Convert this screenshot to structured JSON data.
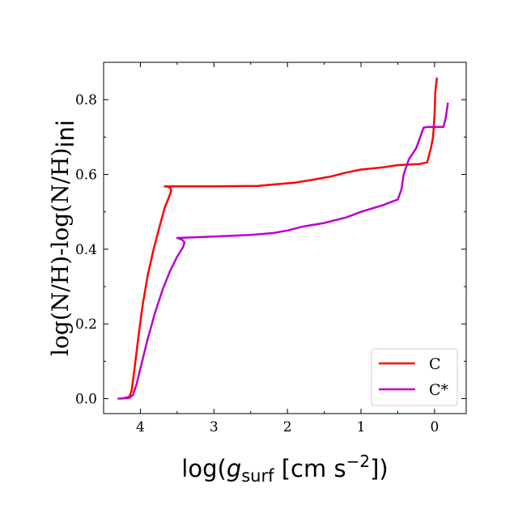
{
  "chart_data": {
    "type": "line",
    "xlabel": {
      "prefix": "log(",
      "symbol": "g",
      "subscript": "surf",
      "unit": " [cm s",
      "exponent": "−2",
      "suffix": "])"
    },
    "ylabel": {
      "main": "log(N/H)-log(N/H)",
      "subscript": "ini"
    },
    "xlim": [
      4.5,
      -0.43
    ],
    "ylim": [
      -0.04,
      0.9
    ],
    "x_inverted": true,
    "xticks": [
      4,
      3,
      2,
      1,
      0
    ],
    "xtick_labels": [
      "4",
      "3",
      "2",
      "1",
      "0"
    ],
    "yticks": [
      0.0,
      0.2,
      0.4,
      0.6,
      0.8
    ],
    "ytick_labels": [
      "0.0",
      "0.2",
      "0.4",
      "0.6",
      "0.8"
    ],
    "grid": false,
    "legend_position": "bottom-right",
    "series": [
      {
        "name": "C",
        "color": "#ff0000",
        "points": [
          [
            4.25,
            0.0
          ],
          [
            4.15,
            0.005
          ],
          [
            4.12,
            0.02
          ],
          [
            4.08,
            0.08
          ],
          [
            4.03,
            0.16
          ],
          [
            3.97,
            0.25
          ],
          [
            3.9,
            0.33
          ],
          [
            3.82,
            0.4
          ],
          [
            3.74,
            0.46
          ],
          [
            3.67,
            0.51
          ],
          [
            3.61,
            0.54
          ],
          [
            3.58,
            0.556
          ],
          [
            3.59,
            0.563
          ],
          [
            3.62,
            0.567
          ],
          [
            3.67,
            0.568
          ],
          [
            3.0,
            0.568
          ],
          [
            2.4,
            0.569
          ],
          [
            2.2,
            0.573
          ],
          [
            1.9,
            0.578
          ],
          [
            1.65,
            0.586
          ],
          [
            1.4,
            0.595
          ],
          [
            1.2,
            0.605
          ],
          [
            1.0,
            0.613
          ],
          [
            0.7,
            0.619
          ],
          [
            0.5,
            0.625
          ],
          [
            0.2,
            0.628
          ],
          [
            0.1,
            0.632
          ],
          [
            0.05,
            0.67
          ],
          [
            0.02,
            0.7
          ],
          [
            0.0,
            0.76
          ],
          [
            -0.01,
            0.82
          ],
          [
            -0.03,
            0.857
          ]
        ]
      },
      {
        "name": "C*",
        "color": "#bb00cc",
        "points": [
          [
            4.3,
            0.0
          ],
          [
            4.15,
            0.002
          ],
          [
            4.1,
            0.01
          ],
          [
            4.05,
            0.04
          ],
          [
            4.0,
            0.08
          ],
          [
            3.9,
            0.16
          ],
          [
            3.8,
            0.23
          ],
          [
            3.7,
            0.29
          ],
          [
            3.6,
            0.34
          ],
          [
            3.5,
            0.38
          ],
          [
            3.42,
            0.405
          ],
          [
            3.4,
            0.418
          ],
          [
            3.43,
            0.425
          ],
          [
            3.5,
            0.43
          ],
          [
            3.0,
            0.434
          ],
          [
            2.5,
            0.438
          ],
          [
            2.2,
            0.443
          ],
          [
            2.0,
            0.45
          ],
          [
            1.8,
            0.46
          ],
          [
            1.5,
            0.47
          ],
          [
            1.2,
            0.485
          ],
          [
            1.0,
            0.5
          ],
          [
            0.7,
            0.518
          ],
          [
            0.5,
            0.533
          ],
          [
            0.45,
            0.56
          ],
          [
            0.42,
            0.6
          ],
          [
            0.35,
            0.64
          ],
          [
            0.25,
            0.67
          ],
          [
            0.15,
            0.725
          ],
          [
            0.1,
            0.727
          ],
          [
            -0.12,
            0.727
          ],
          [
            -0.15,
            0.75
          ],
          [
            -0.18,
            0.79
          ]
        ]
      }
    ]
  }
}
